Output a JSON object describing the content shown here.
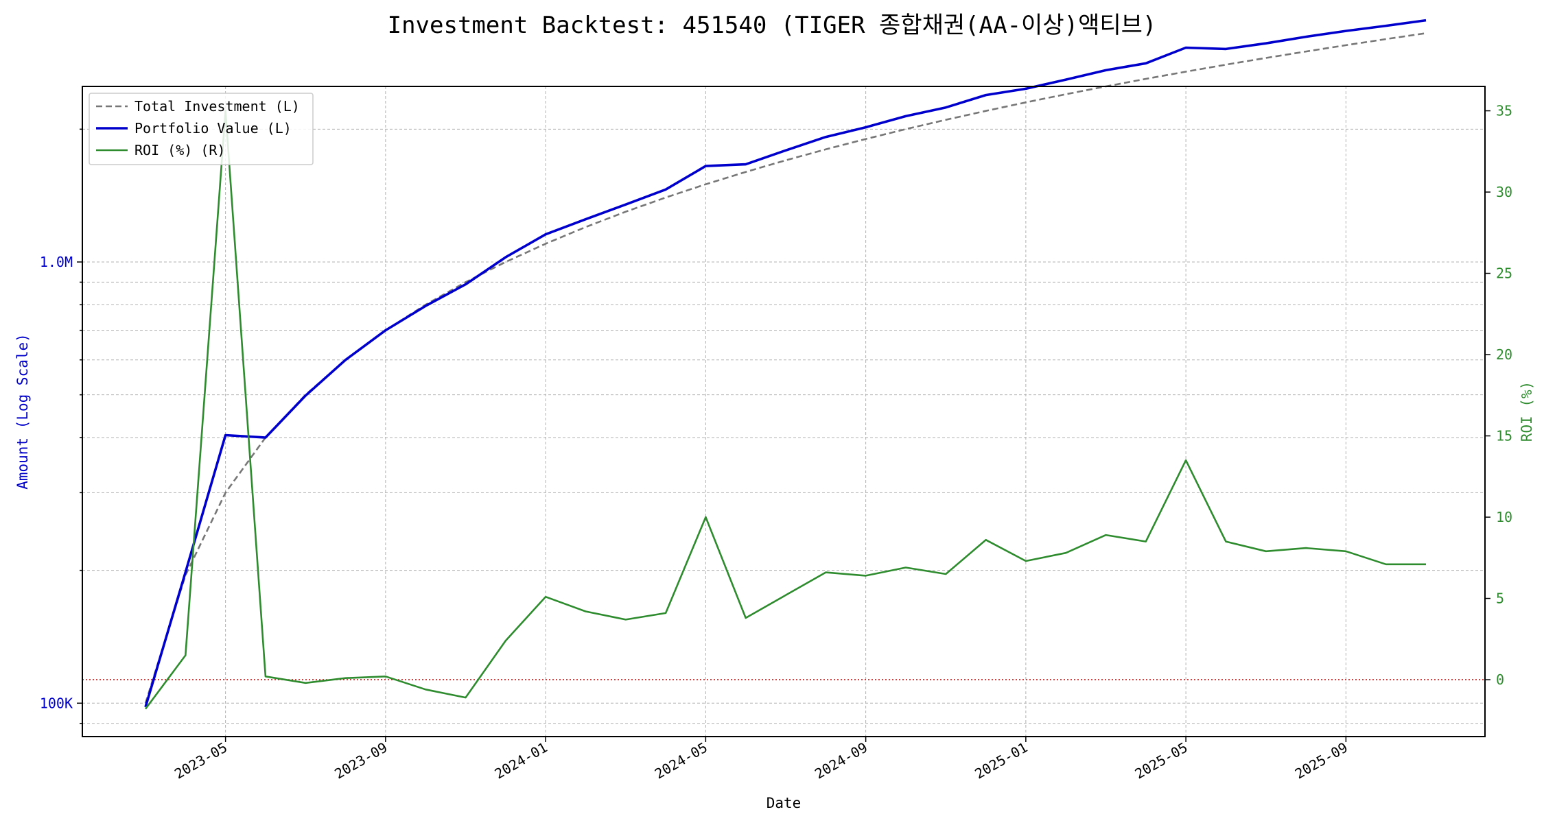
{
  "chart_data": {
    "type": "line",
    "title": "Investment Backtest: 451540 (TIGER 종합채권(AA-이상)액티브)",
    "xlabel": "Date",
    "ylabel_left": "Amount (Log Scale)",
    "ylabel_right": "ROI (%)",
    "left_scale": "log",
    "left_ylim": [
      84000,
      2500000
    ],
    "right_ylim": [
      -3.5,
      36.5
    ],
    "grid": true,
    "legend_position": "upper-left",
    "x_ticks": [
      "2023-05",
      "2023-09",
      "2024-01",
      "2024-05",
      "2024-09",
      "2025-01",
      "2025-05",
      "2025-09"
    ],
    "left_tick_labels": [
      {
        "value": 100000,
        "label": "100K"
      },
      {
        "value": 1000000,
        "label": "1.0M"
      }
    ],
    "right_ticks": [
      0,
      5,
      10,
      15,
      20,
      25,
      30,
      35
    ],
    "x": [
      "2023-03",
      "2023-04",
      "2023-05",
      "2023-06",
      "2023-07",
      "2023-08",
      "2023-09",
      "2023-10",
      "2023-11",
      "2023-12",
      "2024-01",
      "2024-02",
      "2024-03",
      "2024-04",
      "2024-05",
      "2024-06",
      "2024-07",
      "2024-08",
      "2024-09",
      "2024-10",
      "2024-11",
      "2024-12",
      "2025-01",
      "2025-02",
      "2025-03",
      "2025-04",
      "2025-05",
      "2025-06",
      "2025-07",
      "2025-08",
      "2025-09",
      "2025-10",
      "2025-11"
    ],
    "reference_line": {
      "axis": "right",
      "value": 0,
      "color": "#cc0000"
    },
    "series": [
      {
        "name": "Total Investment (L)",
        "axis": "left",
        "color": "#777777",
        "style": "dashed",
        "values": [
          100000,
          195000,
          300000,
          400000,
          500000,
          600000,
          700000,
          800000,
          900000,
          1000000,
          1100000,
          1200000,
          1300000,
          1400000,
          1500000,
          1600000,
          1700000,
          1800000,
          1900000,
          2000000,
          2100000,
          2200000,
          2300000,
          2400000,
          2500000,
          2600000,
          2700000,
          2800000,
          2900000,
          3000000,
          3100000,
          3200000,
          3300000
        ]
      },
      {
        "name": "Portfolio Value (L)",
        "axis": "left",
        "color": "#0000cc",
        "style": "solid",
        "values": [
          98000,
          198000,
          405000,
          400000,
          498000,
          600000,
          700000,
          795000,
          890000,
          1025000,
          1155000,
          1250000,
          1350000,
          1460000,
          1650000,
          1665000,
          1790000,
          1920000,
          2020000,
          2140000,
          2240000,
          2390000,
          2470000,
          2590000,
          2720000,
          2820000,
          3060000,
          3040000,
          3130000,
          3240000,
          3340000,
          3430000,
          3530000
        ]
      },
      {
        "name": "ROI (%) (R)",
        "axis": "right",
        "color": "#2e8b2e",
        "style": "solid",
        "values": [
          -1.8,
          1.5,
          35.0,
          0.2,
          -0.2,
          0.1,
          0.2,
          -0.6,
          -1.1,
          2.4,
          5.1,
          4.2,
          3.7,
          4.1,
          10.0,
          3.8,
          5.2,
          6.6,
          6.4,
          6.9,
          6.5,
          8.6,
          7.3,
          7.8,
          8.9,
          8.5,
          13.5,
          8.5,
          7.9,
          8.1,
          7.9,
          7.1,
          7.1
        ]
      }
    ]
  }
}
